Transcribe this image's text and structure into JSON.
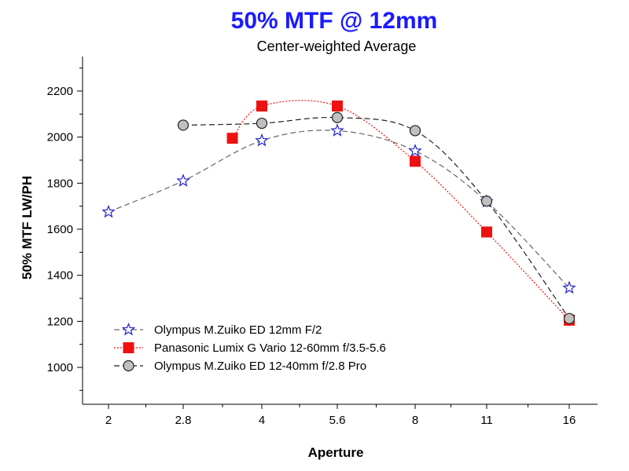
{
  "chart_data": {
    "type": "line",
    "title": "50% MTF @ 12mm",
    "subtitle": "Center-weighted Average",
    "xlabel": "Aperture",
    "ylabel": "50% MTF  LW/PH",
    "x_ticks": [
      "2",
      "2.8",
      "4",
      "5.6",
      "8",
      "11",
      "16"
    ],
    "y_ticks": [
      1000,
      1200,
      1400,
      1600,
      1800,
      2000,
      2200
    ],
    "ylim": [
      820,
      2350
    ],
    "grid": false,
    "legend_position": "bottom-left",
    "title_color": "#1a1aff",
    "series": [
      {
        "name": "Olympus M.Zuiko ED 12mm F/2",
        "marker": "star-icon",
        "marker_color": "#2222cc",
        "line_color": "#666666",
        "line_style": "dashed",
        "x": [
          2,
          2.8,
          4,
          5.6,
          8,
          11,
          16
        ],
        "values": [
          1675,
          1810,
          1985,
          2028,
          1940,
          1720,
          1345
        ]
      },
      {
        "name": "Panasonic Lumix G Vario 12-60mm f/3.5-5.6",
        "marker": "square-icon",
        "marker_color": "#ee1111",
        "line_color": "#ee1111",
        "line_style": "dotted",
        "x": [
          3.5,
          4,
          5.6,
          8,
          11,
          16
        ],
        "values": [
          1995,
          2135,
          2135,
          1895,
          1588,
          1205
        ]
      },
      {
        "name": "Olympus M.Zuiko ED 12-40mm f/2.8 Pro",
        "marker": "circle-icon",
        "marker_color": "#c0c0c0",
        "line_color": "#222222",
        "line_style": "dashed",
        "x": [
          2.8,
          4,
          5.6,
          8,
          11,
          16
        ],
        "values": [
          2052,
          2060,
          2085,
          2028,
          1722,
          1212
        ]
      }
    ]
  }
}
